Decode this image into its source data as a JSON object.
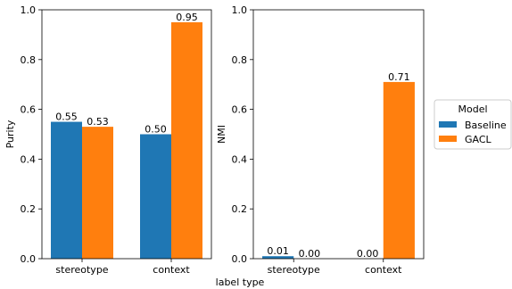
{
  "chart_data": [
    {
      "type": "bar",
      "categories": [
        "stereotype",
        "context"
      ],
      "series": [
        {
          "name": "Baseline",
          "values": [
            0.55,
            0.5
          ],
          "labels": [
            "0.55",
            "0.50"
          ]
        },
        {
          "name": "GACL",
          "values": [
            0.53,
            0.95
          ],
          "labels": [
            "0.53",
            "0.95"
          ]
        }
      ],
      "ylabel": "Purity",
      "ylim": [
        0,
        1.0
      ],
      "yticks": [
        0.0,
        0.2,
        0.4,
        0.6,
        0.8,
        1.0
      ],
      "ytick_labels": [
        "0.0",
        "0.2",
        "0.4",
        "0.6",
        "0.8",
        "1.0"
      ]
    },
    {
      "type": "bar",
      "categories": [
        "stereotype",
        "context"
      ],
      "series": [
        {
          "name": "Baseline",
          "values": [
            0.01,
            0.0
          ],
          "labels": [
            "0.01",
            "0.00"
          ]
        },
        {
          "name": "GACL",
          "values": [
            0.0,
            0.71
          ],
          "labels": [
            "0.00",
            "0.71"
          ]
        }
      ],
      "ylabel": "NMI",
      "ylim": [
        0,
        1.0
      ],
      "yticks": [
        0.0,
        0.2,
        0.4,
        0.6,
        0.8,
        1.0
      ],
      "ytick_labels": [
        "0.0",
        "0.2",
        "0.4",
        "0.6",
        "0.8",
        "1.0"
      ]
    }
  ],
  "shared": {
    "xlabel": "label type"
  },
  "legend": {
    "title": "Model",
    "placement": "right",
    "entries": [
      {
        "name": "Baseline",
        "color": "#1f77b4"
      },
      {
        "name": "GACL",
        "color": "#ff7f0e"
      }
    ]
  },
  "colors": {
    "Baseline": "#1f77b4",
    "GACL": "#ff7f0e"
  }
}
